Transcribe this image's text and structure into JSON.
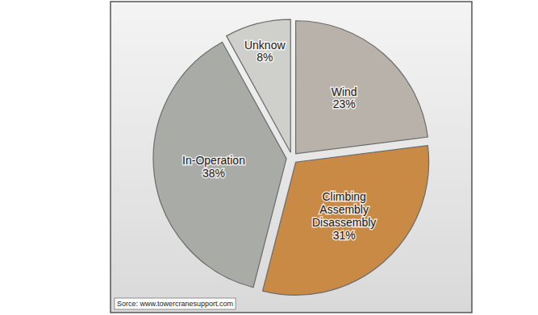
{
  "chart_data": {
    "type": "pie",
    "categories": [
      "Wind",
      "Climbing Assembly Disassembly",
      "In-Operation",
      "Unknow"
    ],
    "values": [
      23,
      31,
      38,
      8
    ],
    "value_labels": [
      "23%",
      "31%",
      "38%",
      "8%"
    ],
    "colors": [
      "#b9b2aa",
      "#c98a45",
      "#a9aba6",
      "#cfcfcb"
    ],
    "data_labels": true,
    "annotations": [
      "Sorce: www.towercranesupport.com"
    ]
  }
}
